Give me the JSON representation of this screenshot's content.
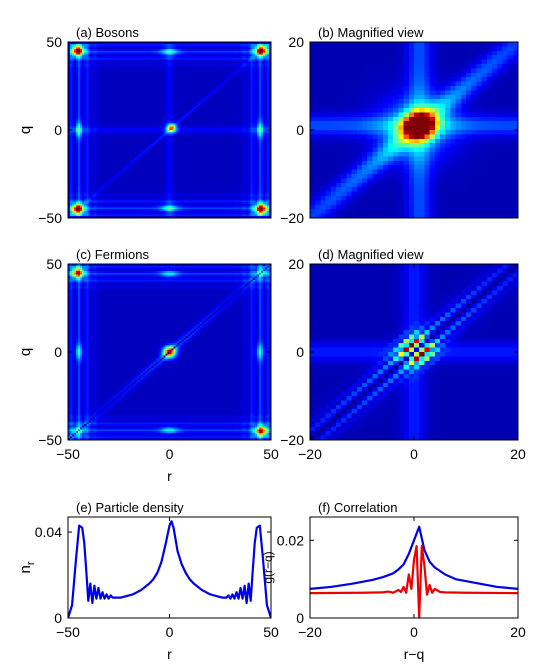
{
  "chart_data": [
    {
      "id": "a",
      "type": "heatmap",
      "title": "(a) Bosons",
      "xlabel": "",
      "ylabel": "q",
      "xlim": [
        -50,
        50
      ],
      "ylim": [
        -50,
        50
      ],
      "xticks": [],
      "yticks": [
        -50,
        0,
        50
      ],
      "colormap": "jet",
      "features": {
        "diagonal_peak_value": 0.6,
        "corner_peaks": [
          [
            -45,
            45
          ],
          [
            45,
            -45
          ],
          [
            45,
            45
          ],
          [
            -45,
            -45
          ]
        ],
        "corner_peak_value": 1.0
      }
    },
    {
      "id": "b",
      "type": "heatmap",
      "title": "(b) Magnified view",
      "xlabel": "",
      "ylabel": "",
      "xlim": [
        -20,
        20
      ],
      "ylim": [
        -20,
        20
      ],
      "xticks": [],
      "yticks": [
        -20,
        0,
        20
      ],
      "colormap": "jet",
      "features": {
        "center_peak_value": 1.0
      }
    },
    {
      "id": "c",
      "type": "heatmap",
      "title": "(c) Fermions",
      "xlabel": "r",
      "ylabel": "q",
      "xlim": [
        -50,
        50
      ],
      "ylim": [
        -50,
        50
      ],
      "xticks": [
        -50,
        0,
        50
      ],
      "yticks": [
        -50,
        0,
        50
      ],
      "colormap": "jet",
      "features": {
        "diagonal_zero": true,
        "center_peak_value": 1.0
      }
    },
    {
      "id": "d",
      "type": "heatmap",
      "title": "(d) Magnified view",
      "xlabel": "",
      "ylabel": "",
      "xlim": [
        -20,
        20
      ],
      "ylim": [
        -20,
        20
      ],
      "xticks": [
        -20,
        0,
        20
      ],
      "yticks": [
        -20,
        0,
        20
      ],
      "colormap": "jet",
      "features": {
        "diagonal_zero": true,
        "center_peak_value": 1.0
      }
    },
    {
      "id": "e",
      "type": "line",
      "title": "(e) Particle density",
      "xlabel": "r",
      "ylabel": "n_r",
      "xlim": [
        -50,
        50
      ],
      "ylim": [
        0,
        0.047
      ],
      "xticks": [
        -50,
        0,
        50
      ],
      "yticks": [
        0,
        0.04
      ],
      "ytick_labels": [
        "0",
        "0.04"
      ],
      "series": [
        {
          "color": "#0000ee",
          "x": [
            -50,
            -48,
            -46,
            -44.5,
            -43,
            -42,
            -41,
            -40,
            -39,
            -38,
            -37,
            -36,
            -35,
            -34,
            -33,
            -32,
            -31,
            -30,
            -29,
            -28,
            -26,
            -24,
            -22,
            -20,
            -18,
            -16,
            -14,
            -12,
            -10,
            -8,
            -6,
            -4,
            -2,
            0,
            1,
            2,
            4,
            6,
            8,
            10,
            12,
            14,
            16,
            18,
            20,
            22,
            24,
            26,
            28,
            29,
            30,
            31,
            32,
            33,
            34,
            35,
            36,
            37,
            38,
            39,
            40,
            41,
            42,
            43,
            44.5,
            46,
            48,
            50
          ],
          "y": [
            0.0,
            0.006,
            0.028,
            0.043,
            0.042,
            0.035,
            0.022,
            0.008,
            0.016,
            0.007,
            0.015,
            0.009,
            0.014,
            0.009,
            0.012,
            0.009,
            0.011,
            0.009,
            0.0105,
            0.0095,
            0.0095,
            0.0095,
            0.01,
            0.0105,
            0.011,
            0.012,
            0.013,
            0.0145,
            0.016,
            0.018,
            0.021,
            0.026,
            0.034,
            0.043,
            0.045,
            0.042,
            0.031,
            0.025,
            0.021,
            0.018,
            0.016,
            0.0145,
            0.013,
            0.012,
            0.011,
            0.0105,
            0.01,
            0.0095,
            0.0095,
            0.0105,
            0.009,
            0.011,
            0.009,
            0.012,
            0.009,
            0.014,
            0.009,
            0.015,
            0.007,
            0.016,
            0.008,
            0.022,
            0.035,
            0.042,
            0.043,
            0.028,
            0.006,
            0.0
          ]
        }
      ]
    },
    {
      "id": "f",
      "type": "line",
      "title": "(f) Correlation",
      "xlabel": "r−q",
      "ylabel": "g(r−q)",
      "xlim": [
        -20,
        20
      ],
      "ylim": [
        0,
        0.026
      ],
      "xticks": [
        -20,
        0,
        20
      ],
      "yticks": [
        0,
        0.02
      ],
      "ytick_labels": [
        "0",
        "0.02"
      ],
      "series": [
        {
          "color": "#0000ee",
          "x": [
            -20,
            -16,
            -12,
            -8,
            -6,
            -4,
            -3,
            -2,
            -1,
            0,
            1,
            2,
            3,
            4,
            6,
            8,
            12,
            16,
            20
          ],
          "y": [
            0.0075,
            0.008,
            0.0088,
            0.0098,
            0.0105,
            0.0115,
            0.0125,
            0.0138,
            0.0165,
            0.02,
            0.0235,
            0.0175,
            0.0145,
            0.013,
            0.0112,
            0.01,
            0.009,
            0.008,
            0.0075
          ]
        },
        {
          "color": "#ee0000",
          "x": [
            -20,
            -10,
            -6,
            -5,
            -4,
            -3,
            -2.5,
            -2,
            -1.5,
            -1,
            -0.5,
            0,
            0.5,
            1,
            1.5,
            2,
            2.5,
            3,
            3.5,
            4,
            5,
            6,
            10,
            20
          ],
          "y": [
            0.0064,
            0.0065,
            0.0066,
            0.0068,
            0.0065,
            0.0072,
            0.0067,
            0.008,
            0.0065,
            0.0112,
            0.0075,
            0.015,
            0.0185,
            0.0,
            0.0185,
            0.0135,
            0.006,
            0.0085,
            0.0065,
            0.0075,
            0.0067,
            0.0066,
            0.0065,
            0.0064
          ]
        }
      ]
    }
  ]
}
